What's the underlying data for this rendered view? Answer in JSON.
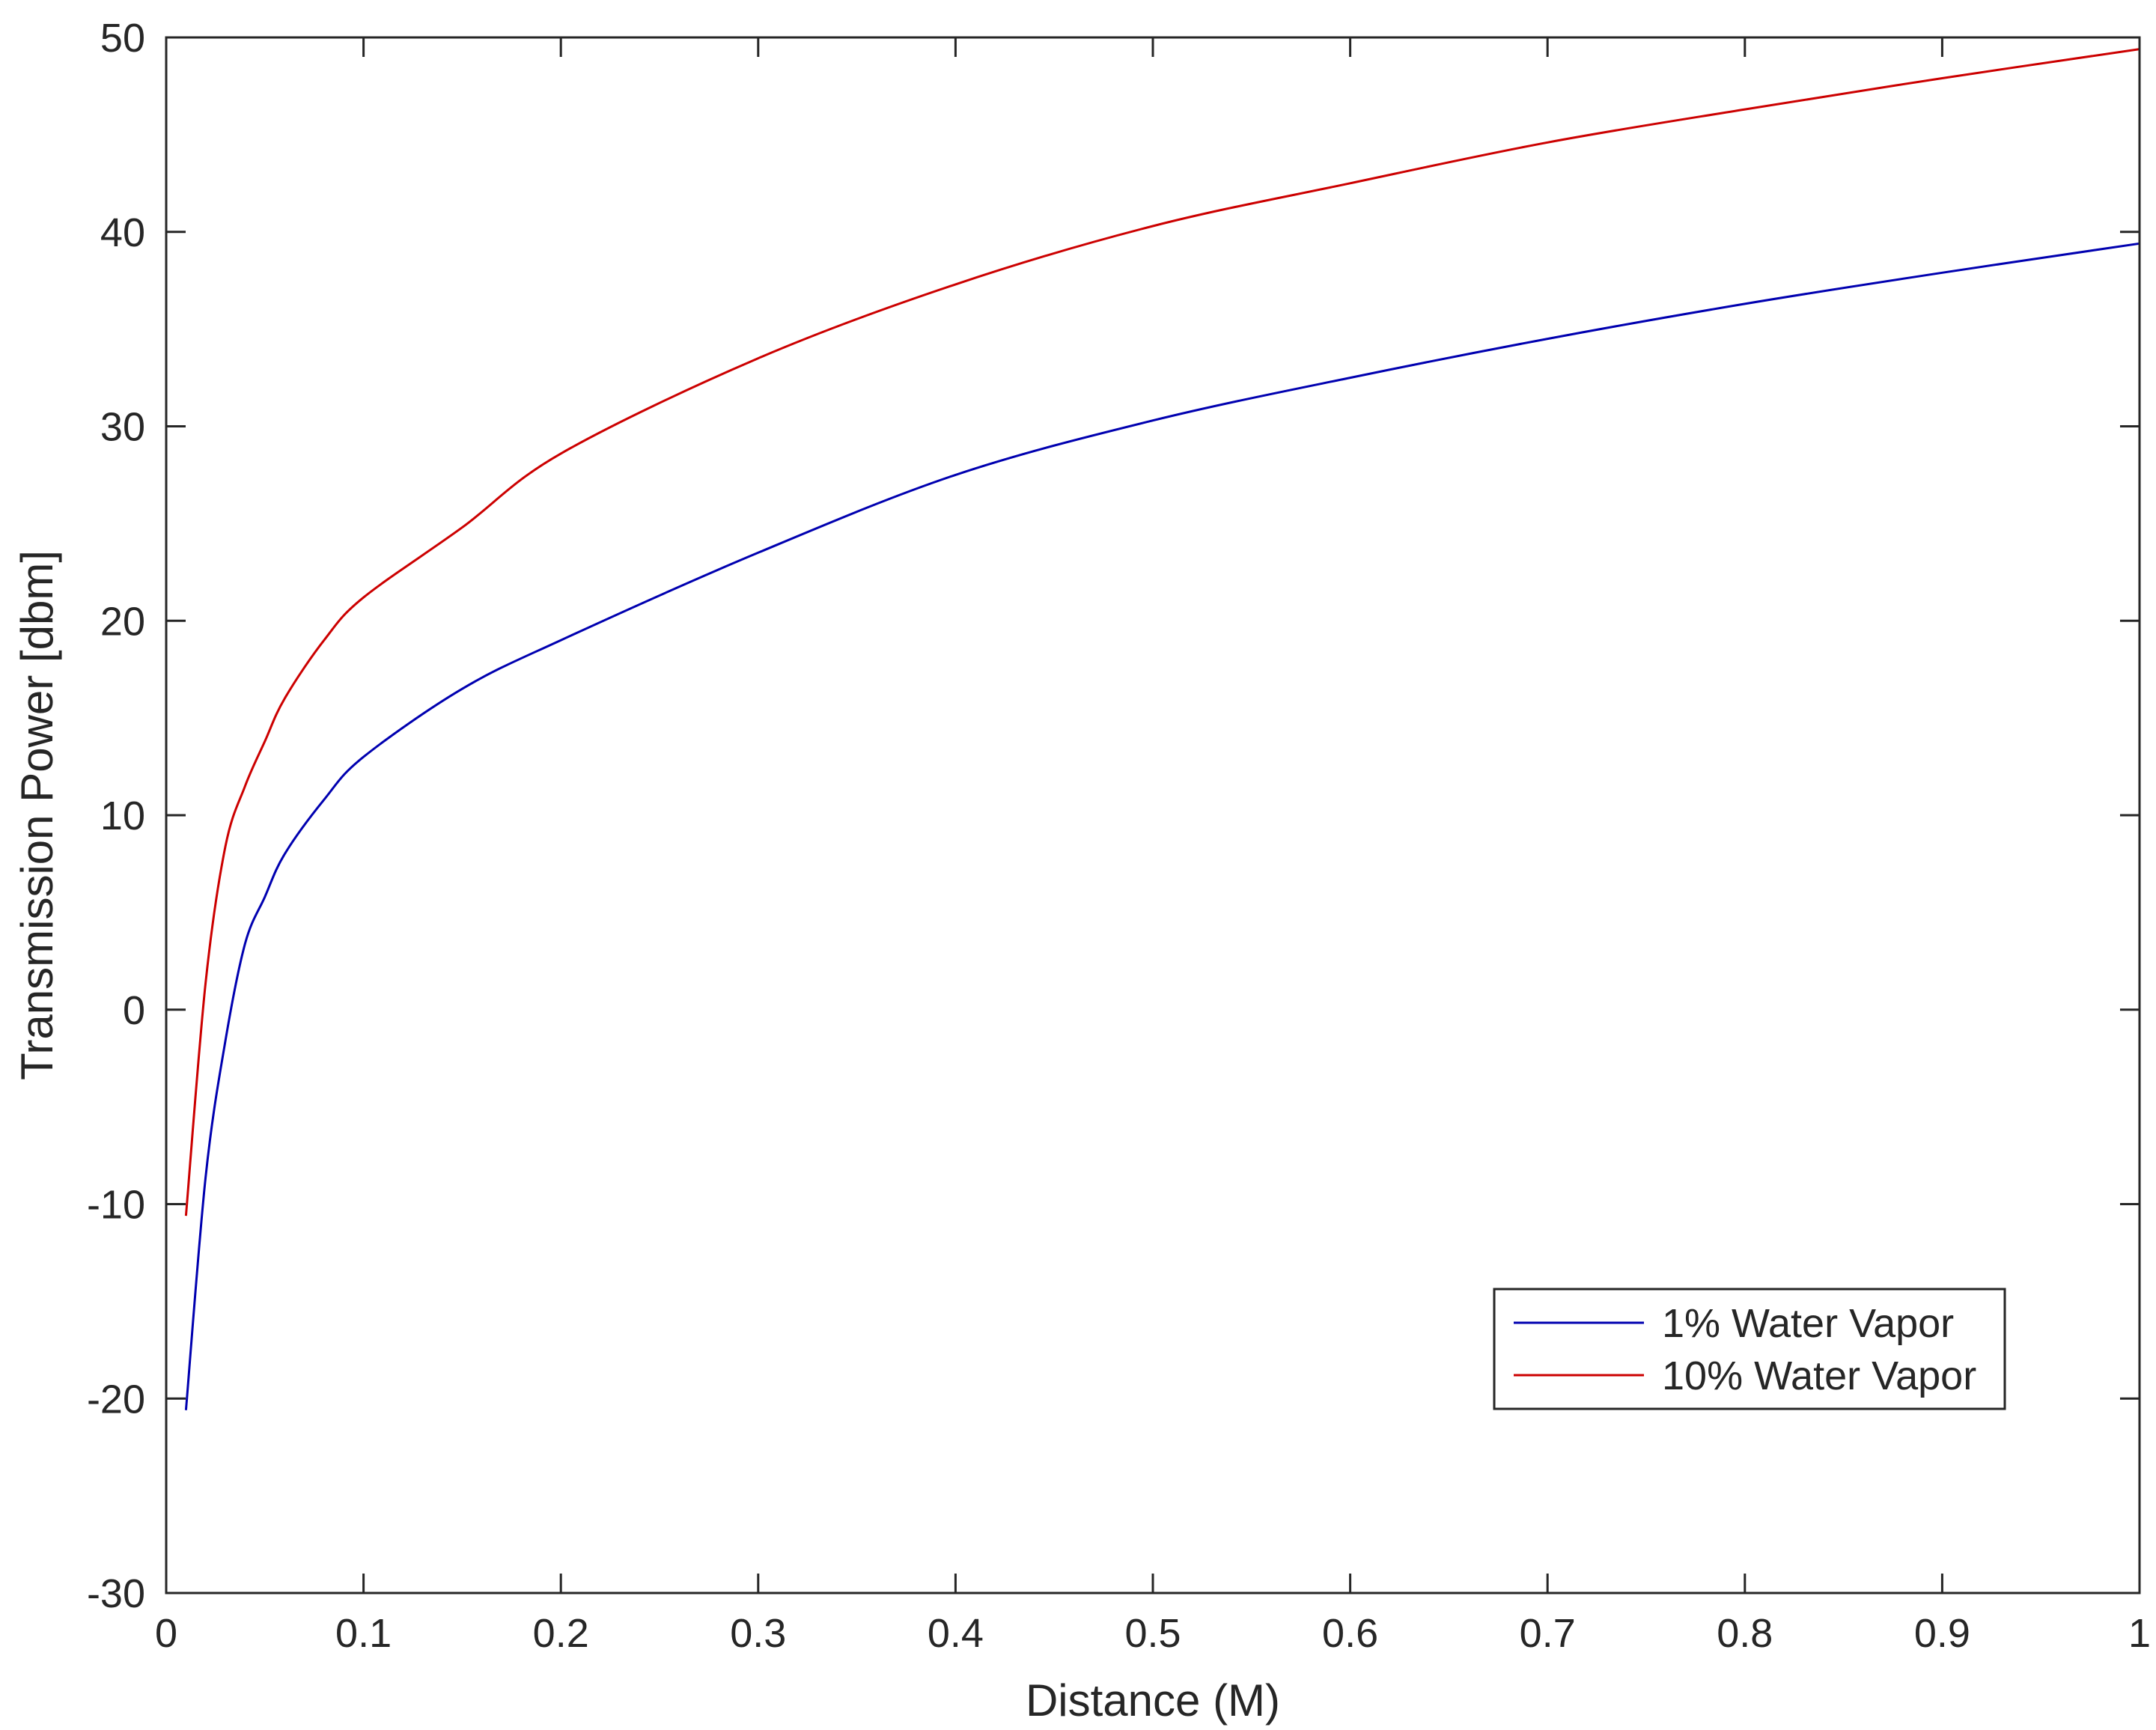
{
  "chart_data": {
    "type": "line",
    "title": "",
    "xlabel": "Distance (M)",
    "ylabel": "Transmission Power [dbm]",
    "xlim": [
      0,
      1
    ],
    "ylim": [
      -30,
      50
    ],
    "grid": false,
    "legend_position": "lower-right",
    "x_ticks": [
      0,
      0.1,
      0.2,
      0.3,
      0.4,
      0.5,
      0.6,
      0.7,
      0.8,
      0.9,
      1
    ],
    "x_tick_labels": [
      "0",
      "0.1",
      "0.2",
      "0.3",
      "0.4",
      "0.5",
      "0.6",
      "0.7",
      "0.8",
      "0.9",
      "1"
    ],
    "y_ticks": [
      -30,
      -20,
      -10,
      0,
      10,
      20,
      30,
      40,
      50
    ],
    "y_tick_labels": [
      "-30",
      "-20",
      "-10",
      "0",
      "10",
      "20",
      "30",
      "40",
      "50"
    ],
    "x": [
      0.01,
      0.02,
      0.03,
      0.04,
      0.05,
      0.06,
      0.08,
      0.1,
      0.15,
      0.2,
      0.3,
      0.4,
      0.5,
      0.6,
      0.7,
      0.8,
      0.9,
      1.0
    ],
    "series": [
      {
        "name": "1% Water Vapor",
        "color": "#0000b0",
        "values": [
          -20.6,
          -8.6,
          -1.6,
          3.4,
          5.8,
          8.0,
          10.8,
          13.0,
          16.5,
          19.0,
          23.5,
          27.5,
          30.3,
          32.5,
          34.5,
          36.3,
          37.9,
          39.4
        ]
      },
      {
        "name": "10% Water Vapor",
        "color": "#cc0000",
        "values": [
          -10.6,
          1.4,
          8.4,
          11.5,
          13.8,
          16.0,
          19.0,
          21.2,
          24.8,
          28.6,
          33.5,
          37.3,
          40.3,
          42.5,
          44.6,
          46.3,
          47.9,
          49.4
        ]
      }
    ]
  }
}
